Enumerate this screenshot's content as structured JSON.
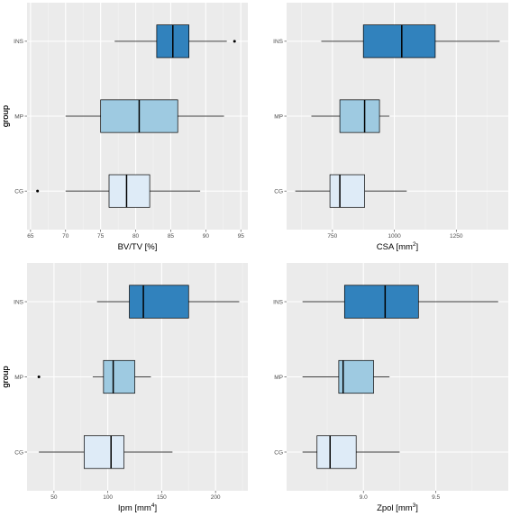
{
  "chart_data": [
    {
      "type": "boxplot",
      "orientation": "horizontal",
      "xlabel": "BV/TV [%]",
      "xlabel_sup": "",
      "xlabel_suffix": "",
      "ylabel": "group",
      "xlim": [
        64.5,
        96
      ],
      "xticks": [
        65,
        70,
        75,
        80,
        85,
        90,
        95
      ],
      "categories": [
        "INS",
        "MP",
        "CG"
      ],
      "boxes": [
        {
          "group": "INS",
          "min": 77,
          "q1": 83,
          "median": 85.3,
          "q3": 87.6,
          "max": 93,
          "outliers": [
            94.1
          ],
          "color": "#3182bd"
        },
        {
          "group": "MP",
          "min": 70,
          "q1": 75,
          "median": 80.5,
          "q3": 86,
          "max": 92.6,
          "outliers": [],
          "color": "#9ecae1"
        },
        {
          "group": "CG",
          "min": 70,
          "q1": 76.2,
          "median": 78.7,
          "q3": 82,
          "max": 89.2,
          "outliers": [
            66
          ],
          "color": "#deebf7"
        }
      ],
      "grid": true
    },
    {
      "type": "boxplot",
      "orientation": "horizontal",
      "xlabel": "CSA [mm",
      "xlabel_sup": "2",
      "xlabel_suffix": "]",
      "ylabel": "group",
      "xlim": [
        565,
        1460
      ],
      "xticks": [
        750,
        1000,
        1250
      ],
      "categories": [
        "INS",
        "MP",
        "CG"
      ],
      "boxes": [
        {
          "group": "INS",
          "min": 705,
          "q1": 875,
          "median": 1030,
          "q3": 1165,
          "max": 1425,
          "outliers": [],
          "color": "#3182bd"
        },
        {
          "group": "MP",
          "min": 665,
          "q1": 780,
          "median": 880,
          "q3": 940,
          "max": 980,
          "outliers": [],
          "color": "#9ecae1"
        },
        {
          "group": "CG",
          "min": 600,
          "q1": 740,
          "median": 780,
          "q3": 880,
          "max": 1050,
          "outliers": [],
          "color": "#deebf7"
        }
      ],
      "grid": true
    },
    {
      "type": "boxplot",
      "orientation": "horizontal",
      "xlabel": "Ipm [mm",
      "xlabel_sup": "4",
      "xlabel_suffix": "]",
      "ylabel": "group",
      "xlim": [
        25,
        230
      ],
      "xticks": [
        50,
        100,
        150,
        200
      ],
      "categories": [
        "INS",
        "MP",
        "CG"
      ],
      "boxes": [
        {
          "group": "INS",
          "min": 90,
          "q1": 120,
          "median": 133,
          "q3": 175,
          "max": 222,
          "outliers": [],
          "color": "#3182bd"
        },
        {
          "group": "MP",
          "min": 86,
          "q1": 96,
          "median": 105,
          "q3": 125,
          "max": 140,
          "outliers": [
            36
          ],
          "color": "#9ecae1"
        },
        {
          "group": "CG",
          "min": 36,
          "q1": 78,
          "median": 103,
          "q3": 115,
          "max": 160,
          "outliers": [],
          "color": "#deebf7"
        }
      ],
      "grid": true
    },
    {
      "type": "boxplot",
      "orientation": "horizontal",
      "xlabel": "Zpol [mm",
      "xlabel_sup": "3",
      "xlabel_suffix": "]",
      "ylabel": "group",
      "xlim": [
        8.47,
        10.0
      ],
      "xticks": [
        9.0,
        9.5
      ],
      "xtick_labels": [
        "9.0",
        "9.5"
      ],
      "categories": [
        "INS",
        "MP",
        "CG"
      ],
      "boxes": [
        {
          "group": "INS",
          "min": 8.58,
          "q1": 8.87,
          "median": 9.15,
          "q3": 9.38,
          "max": 9.93,
          "outliers": [],
          "color": "#3182bd"
        },
        {
          "group": "MP",
          "min": 8.58,
          "q1": 8.83,
          "median": 8.86,
          "q3": 9.07,
          "max": 9.18,
          "outliers": [],
          "color": "#9ecae1"
        },
        {
          "group": "CG",
          "min": 8.58,
          "q1": 8.68,
          "median": 8.77,
          "q3": 8.95,
          "max": 9.25,
          "outliers": [],
          "color": "#deebf7"
        }
      ],
      "grid": true
    }
  ]
}
